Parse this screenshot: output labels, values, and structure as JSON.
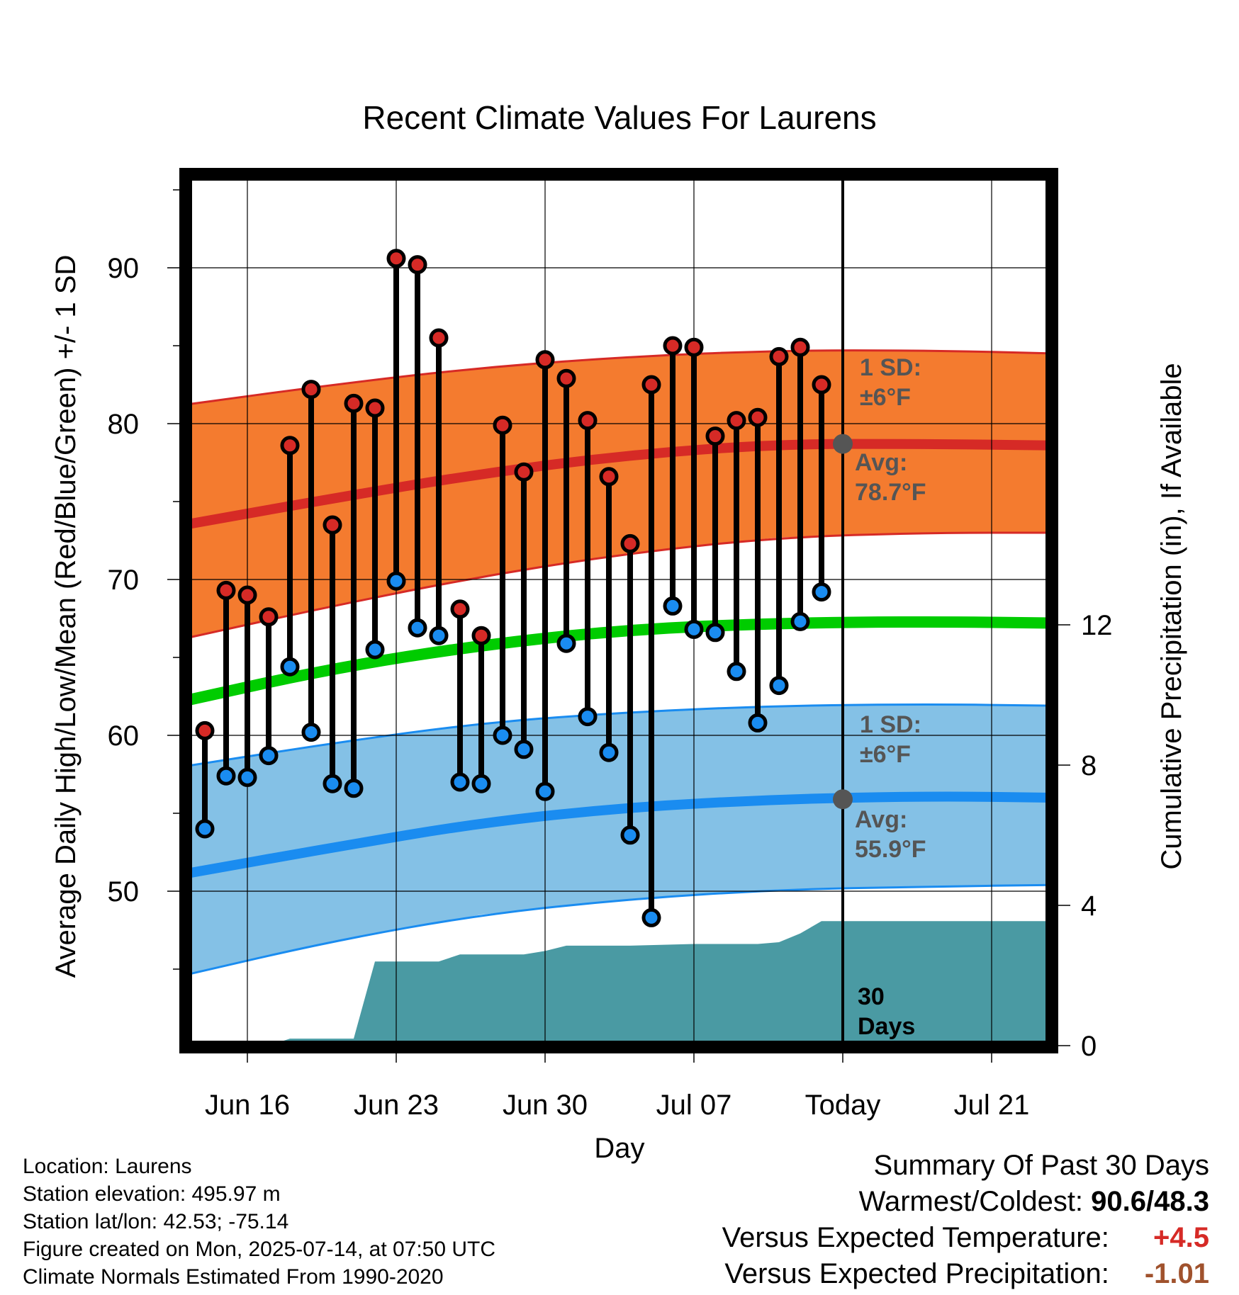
{
  "chart_data": {
    "type": "line",
    "title": "Recent Climate Values For Laurens",
    "xlabel": "Day",
    "ylabel": "Average Daily High/Low/Mean (Red/Blue/Green) +/- 1 SD",
    "y2label": "Cumulative Precipitation (in), If Available",
    "x_range": [
      "2025-06-13",
      "2025-07-24"
    ],
    "ylim": [
      40,
      96
    ],
    "y2lim": [
      0,
      21
    ],
    "grid": true,
    "x_ticks": [
      {
        "date": "2025-06-16",
        "label": "Jun 16"
      },
      {
        "date": "2025-06-23",
        "label": "Jun 23"
      },
      {
        "date": "2025-06-30",
        "label": "Jun 30"
      },
      {
        "date": "2025-07-07",
        "label": "Jul 07"
      },
      {
        "date": "2025-07-14",
        "label": "Today"
      },
      {
        "date": "2025-07-21",
        "label": "Jul 21"
      }
    ],
    "y_ticks": [
      50,
      60,
      70,
      80,
      90
    ],
    "y2_ticks": [
      0,
      4,
      8,
      12
    ],
    "today": "2025-07-14",
    "observed": {
      "dates": [
        "2025-06-14",
        "2025-06-15",
        "2025-06-16",
        "2025-06-17",
        "2025-06-18",
        "2025-06-19",
        "2025-06-20",
        "2025-06-21",
        "2025-06-22",
        "2025-06-23",
        "2025-06-24",
        "2025-06-25",
        "2025-06-26",
        "2025-06-27",
        "2025-06-28",
        "2025-06-29",
        "2025-06-30",
        "2025-07-01",
        "2025-07-02",
        "2025-07-03",
        "2025-07-04",
        "2025-07-05",
        "2025-07-06",
        "2025-07-07",
        "2025-07-08",
        "2025-07-09",
        "2025-07-10",
        "2025-07-11",
        "2025-07-12",
        "2025-07-13"
      ],
      "high": [
        60.3,
        69.3,
        69.0,
        67.6,
        78.6,
        82.2,
        73.5,
        81.3,
        81.0,
        90.6,
        90.2,
        85.5,
        68.1,
        66.4,
        79.9,
        76.9,
        84.1,
        82.9,
        80.2,
        76.6,
        72.3,
        82.5,
        85.0,
        84.9,
        79.2,
        80.2,
        80.4,
        84.3,
        84.9,
        82.5
      ],
      "low": [
        54.0,
        57.4,
        57.3,
        58.7,
        64.4,
        60.2,
        56.9,
        56.6,
        65.5,
        69.9,
        66.9,
        66.4,
        57.0,
        56.9,
        60.0,
        59.1,
        56.4,
        65.9,
        61.2,
        58.9,
        53.6,
        48.3,
        68.3,
        66.8,
        66.6,
        64.1,
        60.8,
        63.2,
        67.3,
        69.2
      ]
    },
    "normals": {
      "dates": [
        "2025-06-13",
        "2025-06-20",
        "2025-06-27",
        "2025-07-04",
        "2025-07-11",
        "2025-07-18",
        "2025-07-24"
      ],
      "high_mean": [
        73.5,
        75.2,
        76.8,
        78.0,
        78.7,
        78.7,
        78.6
      ],
      "high_upper": [
        81.2,
        82.5,
        83.6,
        84.3,
        84.7,
        84.7,
        84.5
      ],
      "high_lower": [
        66.2,
        68.3,
        70.2,
        71.7,
        72.7,
        73.0,
        73.0
      ],
      "mean": [
        62.2,
        64.3,
        65.8,
        66.8,
        67.2,
        67.3,
        67.2
      ],
      "low_mean": [
        51.1,
        52.8,
        54.4,
        55.4,
        55.9,
        56.1,
        56.0
      ],
      "low_upper": [
        58.0,
        59.5,
        60.8,
        61.5,
        61.9,
        62.0,
        61.9
      ],
      "low_lower": [
        44.6,
        46.8,
        48.5,
        49.5,
        50.1,
        50.3,
        50.4
      ]
    },
    "precipitation": {
      "dates": [
        "2025-06-13",
        "2025-06-17",
        "2025-06-18",
        "2025-06-21",
        "2025-06-22",
        "2025-06-25",
        "2025-06-26",
        "2025-06-29",
        "2025-06-30",
        "2025-07-01",
        "2025-07-04",
        "2025-07-07",
        "2025-07-10",
        "2025-07-11",
        "2025-07-12",
        "2025-07-13",
        "2025-07-24"
      ],
      "values": [
        0,
        0,
        0.2,
        0.2,
        2.4,
        2.4,
        2.6,
        2.6,
        2.7,
        2.85,
        2.85,
        2.9,
        2.9,
        2.95,
        3.2,
        3.55,
        3.55
      ]
    },
    "annotations": {
      "high_sd_label": "1 SD:",
      "high_sd_value": "±6°F",
      "high_avg_label": "Avg:",
      "high_avg_value": "78.7°F",
      "low_sd_label": "1 SD:",
      "low_sd_value": "±6°F",
      "low_avg_label": "Avg:",
      "low_avg_value": "55.9°F",
      "period_line1": "30",
      "period_line2": "Days"
    },
    "colors": {
      "high_band": "#f47b2f",
      "high_line": "#d62a26",
      "low_band": "#84c1e6",
      "low_line": "#1a8cf0",
      "mean_line": "#00cc00",
      "precip": "#4a9aa3",
      "high_marker": "#d62a26",
      "low_marker": "#1a8cf0",
      "today_marker": "#555555"
    }
  },
  "info": {
    "location": "Location: Laurens",
    "elevation": "Station elevation: 495.97 m",
    "latlon": "Station lat/lon: 42.53; -75.14",
    "created": "Figure created on Mon, 2025-07-14, at 07:50 UTC",
    "normals": "Climate Normals Estimated From 1990-2020"
  },
  "summary": {
    "heading": "Summary Of Past 30 Days",
    "warm_cold_label": "Warmest/Coldest:",
    "warm_cold_value": "90.6/48.3",
    "temp_label": "Versus Expected Temperature:",
    "temp_value": "+4.5",
    "temp_color": "#d62a26",
    "precip_label": "Versus Expected Precipitation:",
    "precip_value": "-1.01",
    "precip_color": "#a0522d"
  }
}
